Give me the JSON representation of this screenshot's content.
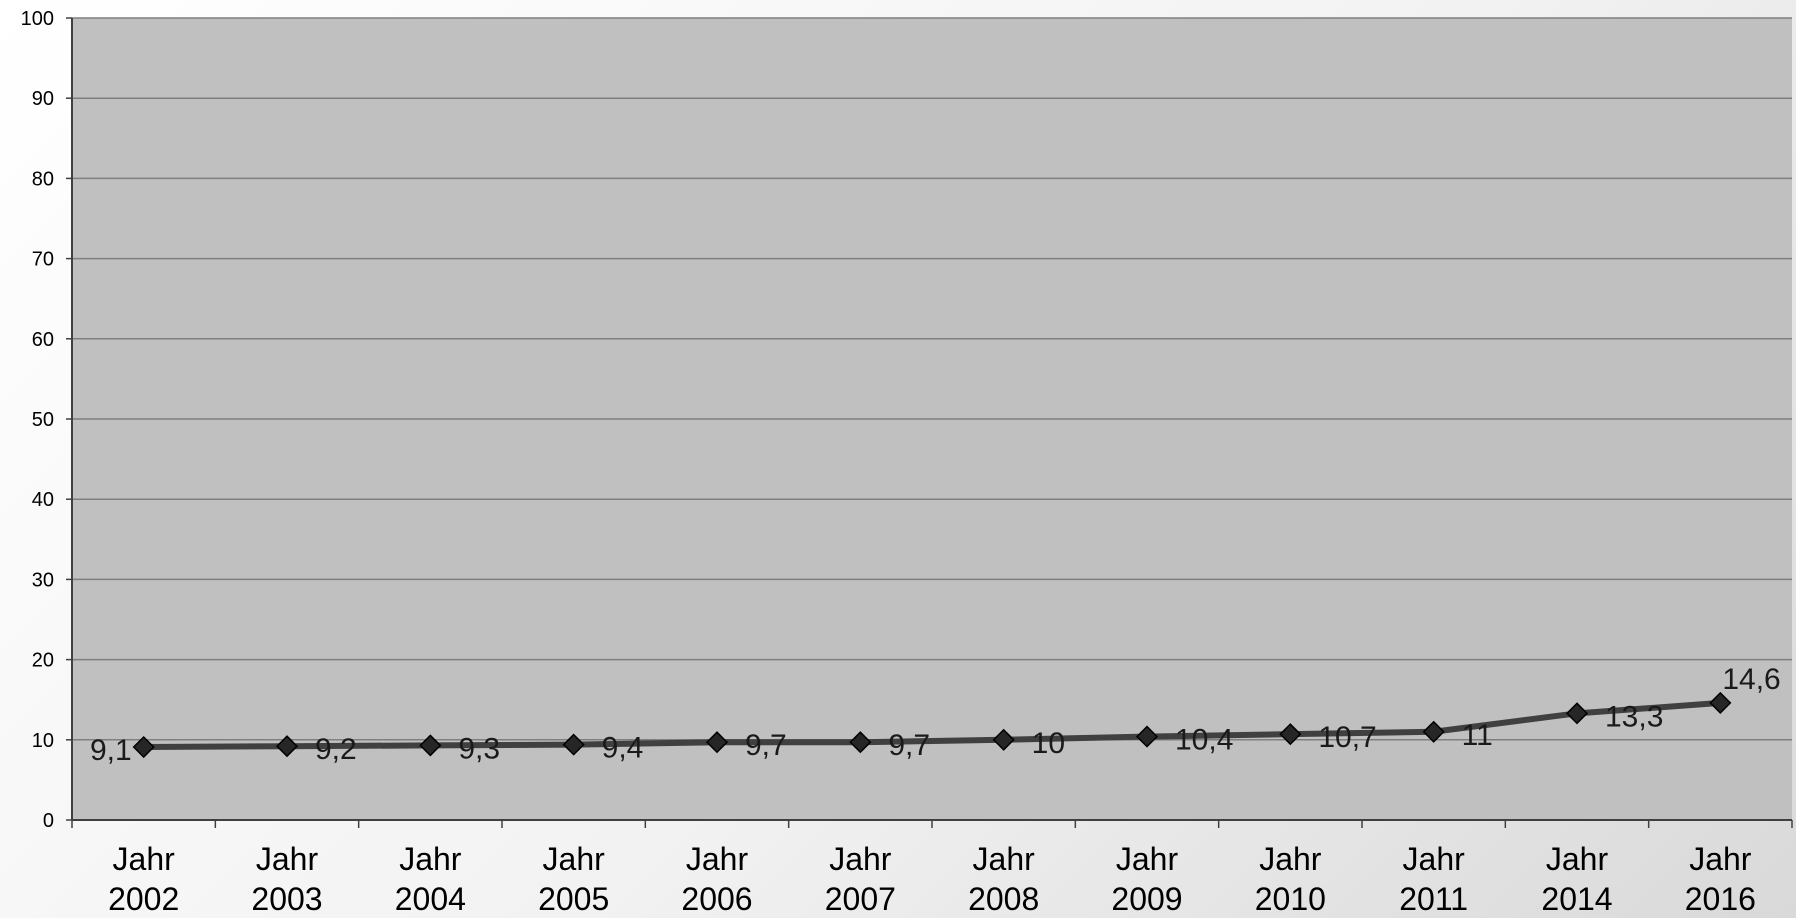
{
  "chart_data": {
    "type": "line",
    "title": "",
    "xlabel": "",
    "ylabel": "",
    "categories": [
      [
        "Jahr",
        "2002"
      ],
      [
        "Jahr",
        "2003"
      ],
      [
        "Jahr",
        "2004"
      ],
      [
        "Jahr",
        "2005"
      ],
      [
        "Jahr",
        "2006"
      ],
      [
        "Jahr",
        "2007"
      ],
      [
        "Jahr",
        "2008"
      ],
      [
        "Jahr",
        "2009"
      ],
      [
        "Jahr",
        "2010"
      ],
      [
        "Jahr",
        "2011"
      ],
      [
        "Jahr",
        "2014"
      ],
      [
        "Jahr",
        "2016"
      ]
    ],
    "series": [
      {
        "values": [
          9.1,
          9.2,
          9.3,
          9.4,
          9.7,
          9.7,
          10,
          10.4,
          10.7,
          11,
          13.3,
          14.6
        ],
        "labels": [
          "9,1",
          "9,2",
          "9,3",
          "9,4",
          "9,7",
          "9,7",
          "10",
          "10,4",
          "10,7",
          "11",
          "13,3",
          "14,6"
        ]
      }
    ],
    "ylim": [
      0,
      100
    ],
    "yticks": [
      0,
      10,
      20,
      30,
      40,
      50,
      60,
      70,
      80,
      90,
      100
    ],
    "grid": true,
    "legend": "none",
    "colors": {
      "plot_background": "#c0c0c0",
      "gridline": "#7f7f7f",
      "line": "#404040",
      "marker": "#262626"
    }
  }
}
